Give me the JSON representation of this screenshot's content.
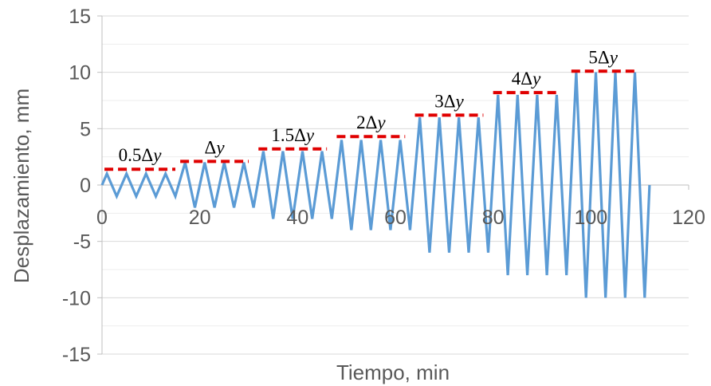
{
  "chart_data": {
    "type": "line",
    "title": "",
    "xlabel": "Tiempo, min",
    "ylabel": "Desplazamiento, mm",
    "xlim": [
      0,
      120
    ],
    "ylim": [
      -15,
      15
    ],
    "xticks": [
      0,
      20,
      40,
      60,
      80,
      100,
      120
    ],
    "yticks": [
      15,
      10,
      5,
      0,
      -5,
      -10,
      -15
    ],
    "grid": "horizontal",
    "legend": "none",
    "series": [
      {
        "color": "#5B9BD5",
        "points": [
          [
            0,
            0
          ],
          [
            1,
            1
          ],
          [
            3,
            -1
          ],
          [
            5,
            1
          ],
          [
            7,
            -1
          ],
          [
            9,
            1
          ],
          [
            11,
            -1
          ],
          [
            13,
            1
          ],
          [
            15,
            -1
          ],
          [
            17,
            2
          ],
          [
            19,
            -2
          ],
          [
            21,
            2
          ],
          [
            23,
            -2
          ],
          [
            25,
            2
          ],
          [
            27,
            -2
          ],
          [
            29,
            2
          ],
          [
            31,
            -2
          ],
          [
            33,
            3
          ],
          [
            35,
            -3
          ],
          [
            37,
            3
          ],
          [
            39,
            -3
          ],
          [
            41,
            3
          ],
          [
            43,
            -3
          ],
          [
            45,
            3
          ],
          [
            47,
            -3
          ],
          [
            49,
            4
          ],
          [
            51,
            -4
          ],
          [
            53,
            4
          ],
          [
            55,
            -4
          ],
          [
            57,
            4
          ],
          [
            59,
            -4
          ],
          [
            61,
            4
          ],
          [
            63,
            -4
          ],
          [
            65,
            6
          ],
          [
            67,
            -6
          ],
          [
            69,
            6
          ],
          [
            71,
            -6
          ],
          [
            73,
            6
          ],
          [
            75,
            -6
          ],
          [
            77,
            6
          ],
          [
            79,
            -6
          ],
          [
            81,
            8
          ],
          [
            83,
            -8
          ],
          [
            85,
            8
          ],
          [
            87,
            -8
          ],
          [
            89,
            8
          ],
          [
            91,
            -8
          ],
          [
            93,
            8
          ],
          [
            95,
            -8
          ],
          [
            97,
            10
          ],
          [
            99,
            -10
          ],
          [
            101,
            10
          ],
          [
            103,
            -10
          ],
          [
            105,
            10
          ],
          [
            107,
            -10
          ],
          [
            109,
            10
          ],
          [
            111,
            -10
          ],
          [
            112,
            0
          ]
        ]
      }
    ],
    "annotations": [
      {
        "text": "0.5Δ",
        "italic": "y",
        "level": 1.4,
        "x_start": 0.5,
        "x_end": 15
      },
      {
        "text": "Δ",
        "italic": "y",
        "level": 2.1,
        "x_start": 16,
        "x_end": 30
      },
      {
        "text": "1.5Δ",
        "italic": "y",
        "level": 3.2,
        "x_start": 32,
        "x_end": 46
      },
      {
        "text": "2Δ",
        "italic": "y",
        "level": 4.3,
        "x_start": 48,
        "x_end": 62
      },
      {
        "text": "3Δ",
        "italic": "y",
        "level": 6.2,
        "x_start": 64,
        "x_end": 78
      },
      {
        "text": "4Δ",
        "italic": "y",
        "level": 8.2,
        "x_start": 80,
        "x_end": 93.5
      },
      {
        "text": "5Δ",
        "italic": "y",
        "level": 10.1,
        "x_start": 96,
        "x_end": 109
      }
    ],
    "annotation_line_color": "#E00000"
  }
}
